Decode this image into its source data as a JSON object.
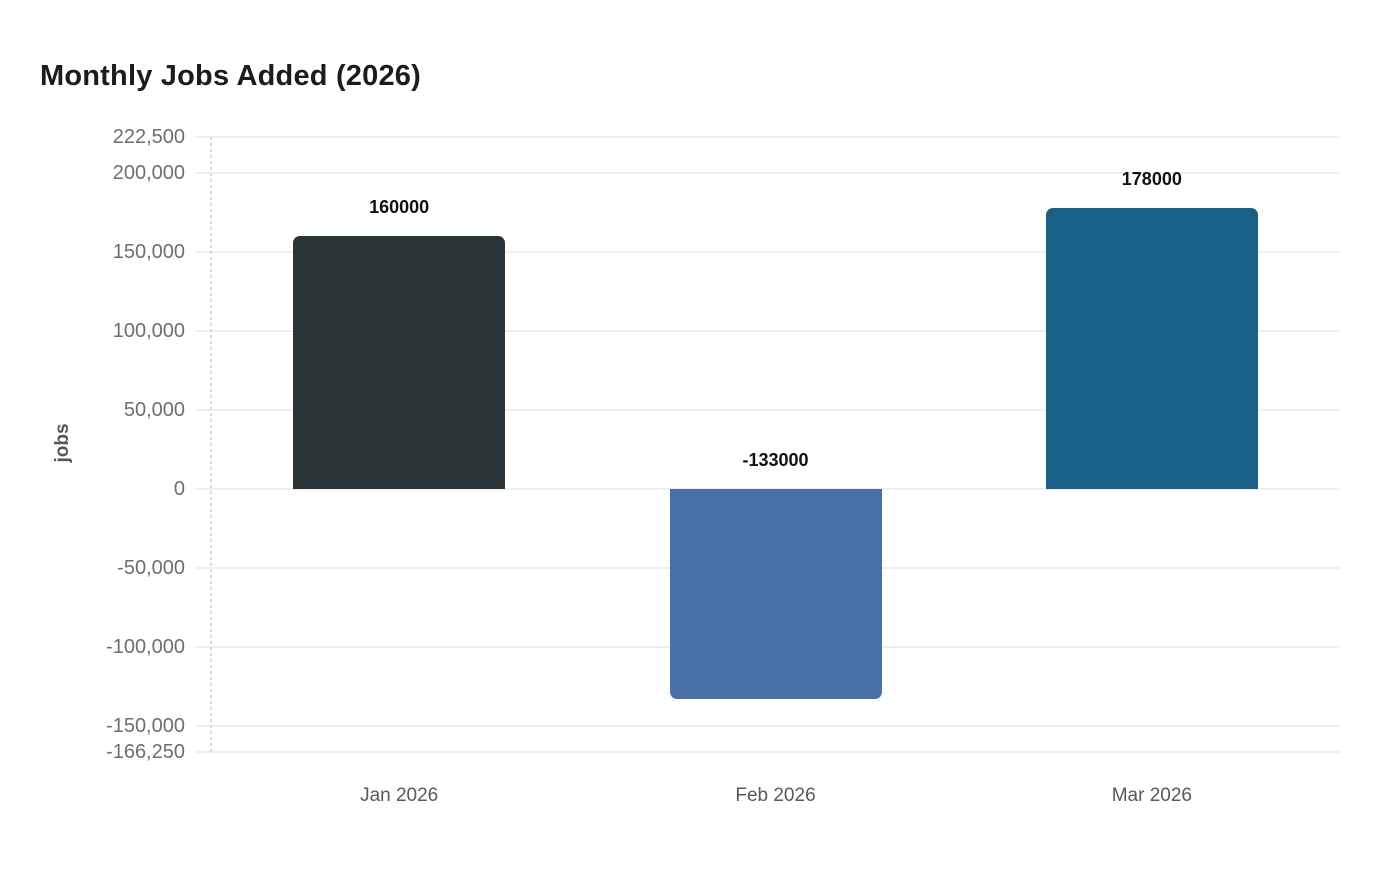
{
  "chart_data": {
    "type": "bar",
    "title": "Monthly Jobs Added (2026)",
    "xlabel": "",
    "ylabel": "jobs",
    "categories": [
      "Jan 2026",
      "Feb 2026",
      "Mar 2026"
    ],
    "values": [
      160000,
      -133000,
      178000
    ],
    "value_labels": [
      "160000",
      "-133000",
      "178000"
    ],
    "bar_colors": [
      "#2b3437",
      "#4a71a7",
      "#1a6189"
    ],
    "ylim": [
      -166250,
      222500
    ],
    "yticks": [
      {
        "value": 222500,
        "label": "222,500"
      },
      {
        "value": 200000,
        "label": "200,000"
      },
      {
        "value": 150000,
        "label": "150,000"
      },
      {
        "value": 100000,
        "label": "100,000"
      },
      {
        "value": 50000,
        "label": "50,000"
      },
      {
        "value": 0,
        "label": "0"
      },
      {
        "value": -50000,
        "label": "-50,000"
      },
      {
        "value": -100000,
        "label": "-100,000"
      },
      {
        "value": -150000,
        "label": "-150,000"
      },
      {
        "value": -166250,
        "label": "-166,250"
      }
    ],
    "grid": true,
    "legend_position": "none",
    "colors": {
      "title_text": "#1c1c1c",
      "tick_text": "#6e6e6e",
      "x_tick_text": "#595959",
      "axis_title_text": "#555555",
      "value_label_text": "#111111",
      "gridline": "#efefef",
      "axis_dashed_line": "#d9d9d9",
      "background": "#ffffff"
    }
  }
}
